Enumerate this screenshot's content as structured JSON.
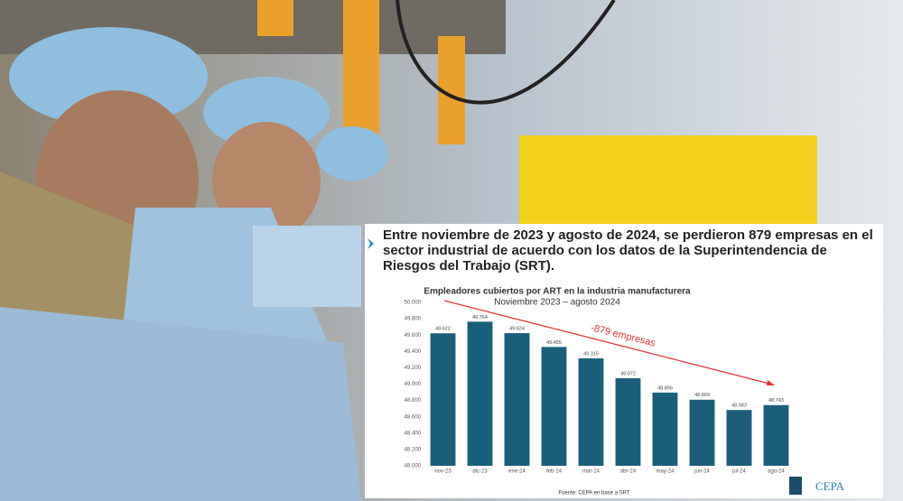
{
  "heading": "Entre noviembre de 2023 y agosto de 2024, se perdieron 879 empresas en el sector industrial de acuerdo con los datos de la Superintendencia de Riesgos del Trabajo (SRT).",
  "logo": "CEPA",
  "chart_data": {
    "type": "bar",
    "title": "Empleadores cubiertos por ART en la industria manufacturera",
    "subtitle": "Noviembre 2023 – agosto 2024",
    "annotation": "-879 empresas",
    "source": "Fuente: CEPA en base a SRT",
    "categories": [
      "nov-23",
      "dic-23",
      "ene-24",
      "feb-24",
      "mar-24",
      "abr-24",
      "may-24",
      "jun-24",
      "jul-24",
      "ago-24"
    ],
    "values": [
      49622,
      49764,
      49624,
      49455,
      49315,
      49072,
      48896,
      48809,
      48683,
      48743
    ],
    "value_labels": [
      "49.622",
      "49.764",
      "49.624",
      "49.455",
      "49.315",
      "49.072",
      "48.896",
      "48.809",
      "48.683",
      "48.743"
    ],
    "color": "#1b5e7c",
    "ylim": [
      48000,
      50000
    ],
    "yticks": [
      {
        "value": 48000,
        "label": "48.000"
      },
      {
        "value": 48200,
        "label": "48.200"
      },
      {
        "value": 48400,
        "label": "48.400"
      },
      {
        "value": 48600,
        "label": "48.600"
      },
      {
        "value": 48800,
        "label": "48.800"
      },
      {
        "value": 49000,
        "label": "49.000"
      },
      {
        "value": 49200,
        "label": "49.200"
      },
      {
        "value": 49400,
        "label": "49.400"
      },
      {
        "value": 49600,
        "label": "49.600"
      },
      {
        "value": 49800,
        "label": "49.800"
      },
      {
        "value": 50000,
        "label": "50.000"
      }
    ],
    "grid": false
  }
}
